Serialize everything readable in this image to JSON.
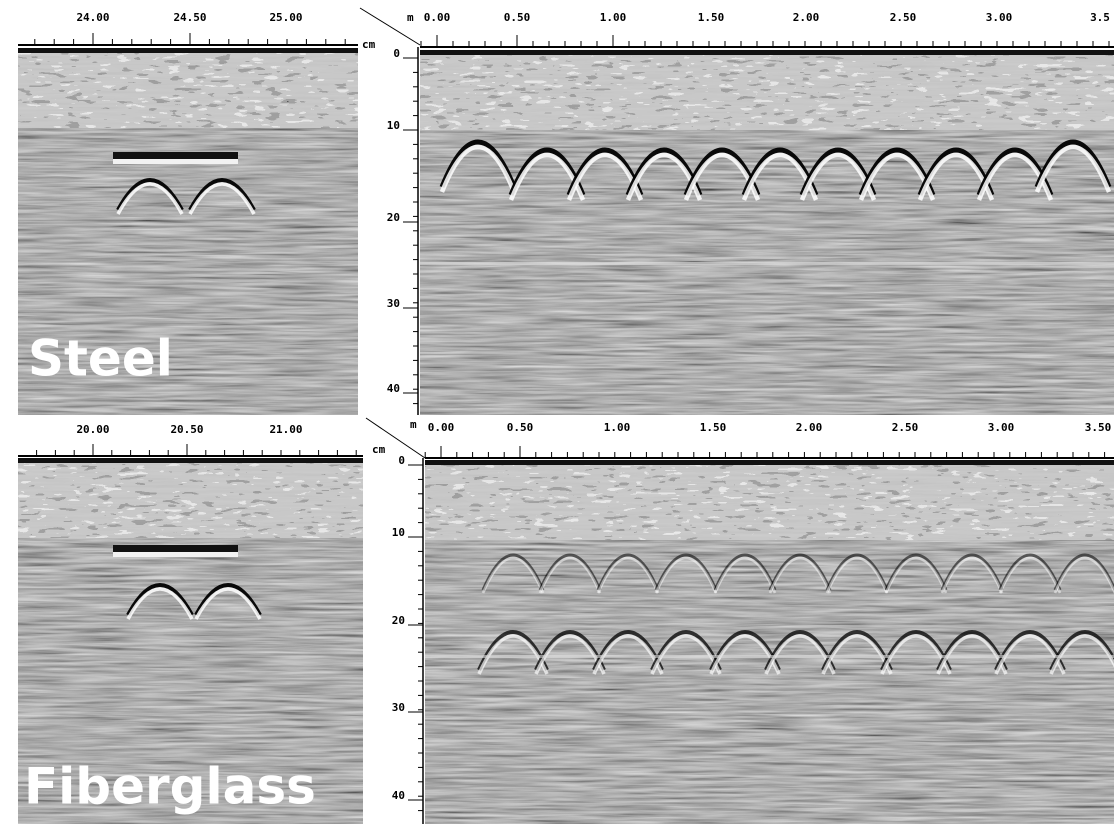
{
  "panels": [
    {
      "label": "Steel",
      "close_up": {
        "unit": "cm",
        "xticks": [
          "24.00",
          "24.50",
          "25.00"
        ]
      },
      "scan": {
        "x_unit": "m",
        "xticks": [
          "0.00",
          "0.50",
          "1.00",
          "1.50",
          "2.00",
          "2.50",
          "3.00",
          "3.5"
        ],
        "yticks": [
          "0",
          "10",
          "20",
          "30",
          "40"
        ]
      }
    },
    {
      "label": "Fiberglass",
      "close_up": {
        "unit": "cm",
        "xticks": [
          "20.00",
          "20.50",
          "21.00"
        ]
      },
      "scan": {
        "x_unit": "m",
        "xticks": [
          "0.00",
          "0.50",
          "1.00",
          "1.50",
          "2.00",
          "2.50",
          "3.00",
          "3.50"
        ],
        "yticks": [
          "0",
          "10",
          "20",
          "30",
          "40"
        ]
      }
    }
  ]
}
